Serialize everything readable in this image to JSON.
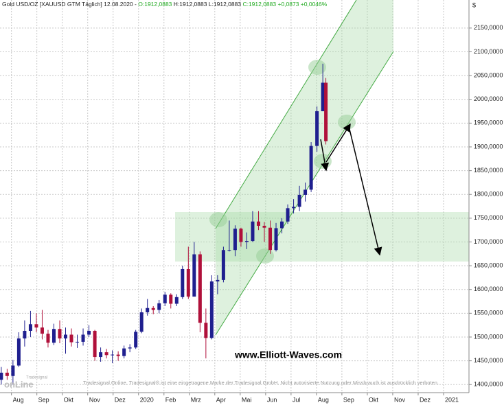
{
  "chart_data": {
    "type": "candlestick",
    "header": {
      "symbol": "Gold USD/OZ [XAUUSD GTM  Täglich] 12.08.2020 - ",
      "open": "O:1912,0883 ",
      "high_low": "H:1912,0883 L:1912,0883 ",
      "close": "C:1912,0883 +0,0873 +0,0046%"
    },
    "y_axis_label": "$",
    "watermark": "www.Elliott-Waves.com",
    "footer": "Tradesignal Online. Tradesignal® ist eine eingetragene Marke der Tradesignal GmbH. Nicht autorisierte Nutzung oder Missbrauch ist ausdrücklich verboten.",
    "logo": {
      "top": "Tradesignal",
      "bottom": "onLine"
    },
    "up_color": "#1f1f8f",
    "down_color": "#b0103a",
    "grid": true,
    "xlim": [
      -0.45,
      18
    ],
    "xticks": [
      {
        "value": 0,
        "label": "Aug"
      },
      {
        "value": 1,
        "label": "Sep"
      },
      {
        "value": 2,
        "label": "Okt"
      },
      {
        "value": 3,
        "label": "Nov"
      },
      {
        "value": 4,
        "label": "Dez"
      },
      {
        "value": 5,
        "label": "2020"
      },
      {
        "value": 6,
        "label": "Feb"
      },
      {
        "value": 7,
        "label": "Mrz"
      },
      {
        "value": 8,
        "label": "Apr"
      },
      {
        "value": 9,
        "label": "Mai"
      },
      {
        "value": 10,
        "label": "Jun"
      },
      {
        "value": 11,
        "label": "Jul"
      },
      {
        "value": 12,
        "label": "Aug"
      },
      {
        "value": 13,
        "label": "Sep"
      },
      {
        "value": 14,
        "label": "Okt"
      },
      {
        "value": 15,
        "label": "Nov"
      },
      {
        "value": 16,
        "label": "Dez"
      },
      {
        "value": 17,
        "label": "2021"
      }
    ],
    "ylim": [
      1383,
      2209
    ],
    "yticks": [
      {
        "value": 1400,
        "label": "1400,0000"
      },
      {
        "value": 1450,
        "label": "1450,0000"
      },
      {
        "value": 1500,
        "label": "1500,0000"
      },
      {
        "value": 1550,
        "label": "1550,0000"
      },
      {
        "value": 1600,
        "label": "1600,0000"
      },
      {
        "value": 1650,
        "label": "1650,0000"
      },
      {
        "value": 1700,
        "label": "1700,0000"
      },
      {
        "value": 1750,
        "label": "1750,0000"
      },
      {
        "value": 1800,
        "label": "1800,0000"
      },
      {
        "value": 1850,
        "label": "1850,0000"
      },
      {
        "value": 1900,
        "label": "1900,0000"
      },
      {
        "value": 1950,
        "label": "1950,0000"
      },
      {
        "value": 2000,
        "label": "2000,0000"
      },
      {
        "value": 2050,
        "label": "2050,0000"
      },
      {
        "value": 2100,
        "label": "2100,0000"
      },
      {
        "value": 2150,
        "label": "2150,0000"
      }
    ],
    "x": [
      -0.4,
      -0.17,
      0.06,
      0.29,
      0.52,
      0.75,
      0.98,
      1.21,
      1.44,
      1.67,
      1.9,
      2.13,
      2.36,
      2.59,
      2.82,
      3.05,
      3.28,
      3.51,
      3.74,
      3.97,
      4.2,
      4.43,
      4.66,
      4.89,
      5.12,
      5.35,
      5.58,
      5.81,
      6.04,
      6.27,
      6.5,
      6.73,
      6.96,
      7.19,
      7.42,
      7.65,
      7.88,
      8.11,
      8.34,
      8.57,
      8.8,
      9.03,
      9.26,
      9.49,
      9.72,
      9.95,
      10.18,
      10.41,
      10.64,
      10.87,
      11.1,
      11.33,
      11.56,
      11.79,
      12.02,
      12.25,
      12.37
    ],
    "ohlc": [
      [
        1410,
        1437,
        1400,
        1425
      ],
      [
        1425,
        1433,
        1410,
        1418
      ],
      [
        1418,
        1452,
        1400,
        1440
      ],
      [
        1440,
        1510,
        1437,
        1497
      ],
      [
        1497,
        1535,
        1480,
        1513
      ],
      [
        1513,
        1555,
        1500,
        1527
      ],
      [
        1527,
        1550,
        1510,
        1520
      ],
      [
        1520,
        1557,
        1495,
        1507
      ],
      [
        1507,
        1515,
        1478,
        1488
      ],
      [
        1488,
        1528,
        1483,
        1517
      ],
      [
        1517,
        1535,
        1487,
        1497
      ],
      [
        1497,
        1520,
        1465,
        1505
      ],
      [
        1505,
        1518,
        1480,
        1489
      ],
      [
        1489,
        1505,
        1477,
        1490
      ],
      [
        1490,
        1518,
        1482,
        1505
      ],
      [
        1505,
        1525,
        1500,
        1513
      ],
      [
        1513,
        1515,
        1450,
        1458
      ],
      [
        1458,
        1478,
        1448,
        1468
      ],
      [
        1468,
        1475,
        1455,
        1462
      ],
      [
        1462,
        1472,
        1445,
        1463
      ],
      [
        1463,
        1470,
        1450,
        1460
      ],
      [
        1460,
        1482,
        1455,
        1476
      ],
      [
        1476,
        1485,
        1468,
        1478
      ],
      [
        1478,
        1515,
        1475,
        1511
      ],
      [
        1511,
        1560,
        1508,
        1552
      ],
      [
        1552,
        1580,
        1545,
        1561
      ],
      [
        1561,
        1565,
        1548,
        1557
      ],
      [
        1557,
        1578,
        1550,
        1571
      ],
      [
        1571,
        1595,
        1565,
        1589
      ],
      [
        1589,
        1592,
        1560,
        1570
      ],
      [
        1570,
        1590,
        1565,
        1584
      ],
      [
        1584,
        1650,
        1580,
        1643
      ],
      [
        1643,
        1690,
        1580,
        1585
      ],
      [
        1585,
        1700,
        1585,
        1674
      ],
      [
        1674,
        1680,
        1510,
        1530
      ],
      [
        1530,
        1560,
        1455,
        1498
      ],
      [
        1498,
        1630,
        1495,
        1617
      ],
      [
        1617,
        1630,
        1590,
        1620
      ],
      [
        1620,
        1690,
        1615,
        1683
      ],
      [
        1683,
        1745,
        1680,
        1683
      ],
      [
        1683,
        1735,
        1670,
        1728
      ],
      [
        1728,
        1730,
        1690,
        1700
      ],
      [
        1700,
        1720,
        1685,
        1702
      ],
      [
        1702,
        1765,
        1700,
        1743
      ],
      [
        1743,
        1765,
        1725,
        1734
      ],
      [
        1734,
        1742,
        1700,
        1730
      ],
      [
        1730,
        1745,
        1675,
        1683
      ],
      [
        1683,
        1740,
        1680,
        1729
      ],
      [
        1729,
        1750,
        1718,
        1743
      ],
      [
        1743,
        1779,
        1738,
        1771
      ],
      [
        1771,
        1790,
        1760,
        1774
      ],
      [
        1774,
        1818,
        1765,
        1799
      ],
      [
        1799,
        1825,
        1785,
        1810
      ],
      [
        1810,
        1910,
        1805,
        1902
      ],
      [
        1902,
        1985,
        1890,
        1975
      ],
      [
        1975,
        2075,
        1975,
        2035
      ],
      [
        2035,
        2045,
        1905,
        1912
      ]
    ]
  }
}
